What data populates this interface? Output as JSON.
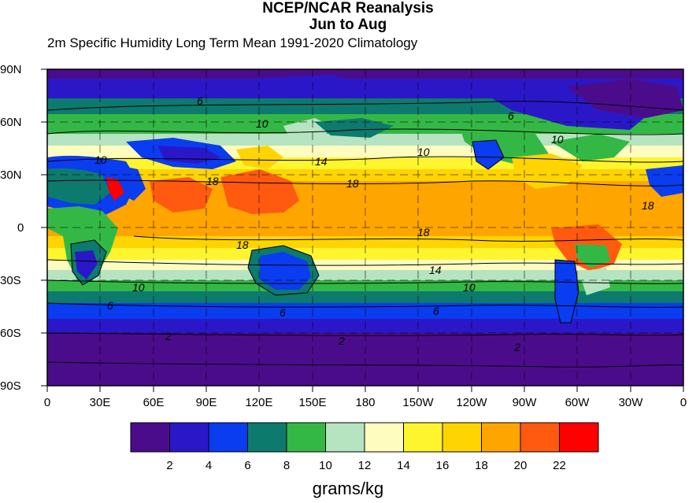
{
  "title_line1": "NCEP/NCAR Reanalysis",
  "title_line2": "Jun to Aug",
  "subtitle": "2m Specific Humidity Long Term Mean 1991-2020 Climatology",
  "units": "grams/kg",
  "lat_labels": [
    "90N",
    "60N",
    "30N",
    "0",
    "30S",
    "60S",
    "90S"
  ],
  "lon_labels": [
    "0",
    "30E",
    "60E",
    "90E",
    "120E",
    "150E",
    "180",
    "150W",
    "120W",
    "90W",
    "60W",
    "30W",
    "0"
  ],
  "colorbar": {
    "colors": [
      "#4b0c8c",
      "#2a18c8",
      "#0a3cf0",
      "#0d7a6e",
      "#34b845",
      "#b6e3c0",
      "#fffcc0",
      "#fff52e",
      "#ffd400",
      "#ffa500",
      "#ff5a10",
      "#ff0000"
    ],
    "labels": [
      "2",
      "4",
      "6",
      "8",
      "10",
      "12",
      "14",
      "16",
      "18",
      "20",
      "22"
    ]
  },
  "contour_labels": [
    "6",
    "6",
    "10",
    "10",
    "10",
    "10",
    "14",
    "18",
    "18",
    "18",
    "18",
    "18",
    "14",
    "10",
    "10",
    "6",
    "6",
    "6",
    "2",
    "2",
    "2"
  ],
  "colors": {
    "ocean_dry": "#4b0c8c",
    "land_line": "#000000"
  }
}
